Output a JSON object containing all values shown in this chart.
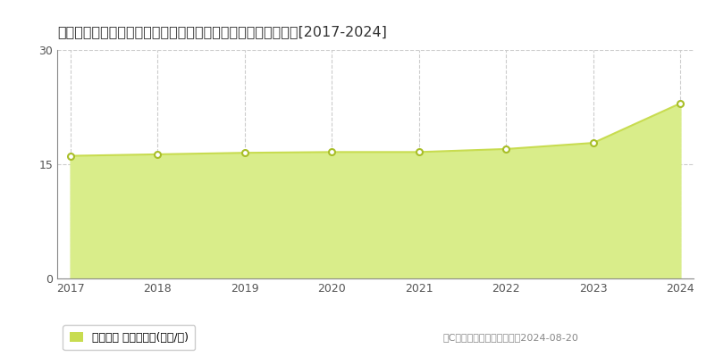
{
  "title": "福島県郡山市大槐町字北中野４２番１５　地価公示　地価推移[2017-2024]",
  "years": [
    2017,
    2018,
    2019,
    2020,
    2021,
    2022,
    2023,
    2024
  ],
  "values": [
    16.1,
    16.3,
    16.5,
    16.6,
    16.6,
    17.0,
    17.8,
    23.0
  ],
  "ylim": [
    0,
    30
  ],
  "yticks": [
    0,
    15,
    30
  ],
  "fill_color": "#d9ed8a",
  "line_color": "#c8dc50",
  "marker_color": "#ffffff",
  "marker_edge_color": "#a8be28",
  "grid_color": "#cccccc",
  "bg_color": "#ffffff",
  "legend_label": "地価公示 平均坪単価(万円/坪)",
  "legend_marker_color": "#c8dc50",
  "copyright_text": "（C）土地価格ドットコム　2024-08-20"
}
